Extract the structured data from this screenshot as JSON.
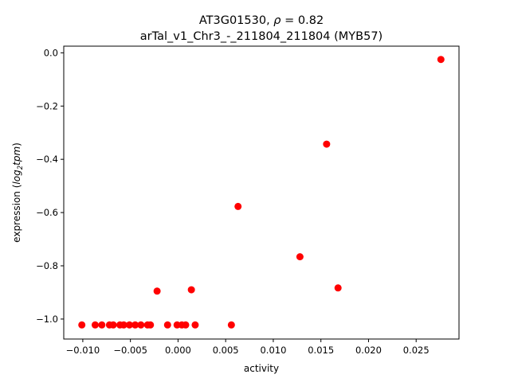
{
  "chart_data": {
    "type": "scatter",
    "title_line1_prefix": "AT3G01530, ",
    "title_line1_rho": "ρ",
    "title_line1_value": " = 0.82",
    "title_line2": "arTal_v1_Chr3_-_211804_211804 (MYB57)",
    "xlabel": "activity",
    "ylabel_prefix": "expression (",
    "ylabel_log": "log",
    "ylabel_sub": "2",
    "ylabel_tpm": "tpm",
    "ylabel_suffix": ")",
    "xlim": [
      -0.012,
      0.0295
    ],
    "ylim": [
      -1.075,
      0.025
    ],
    "xticks": [
      -0.01,
      -0.005,
      0.0,
      0.005,
      0.01,
      0.015,
      0.02,
      0.025
    ],
    "xtick_labels": [
      "−0.010",
      "−0.005",
      "0.000",
      "0.005",
      "0.010",
      "0.015",
      "0.020",
      "0.025"
    ],
    "yticks": [
      -1.0,
      -0.8,
      -0.6,
      -0.4,
      -0.2,
      0.0
    ],
    "ytick_labels": [
      "−1.0",
      "−0.8",
      "−0.6",
      "−0.4",
      "−0.2",
      "0.0"
    ],
    "grid": false,
    "marker_color": "#ff0000",
    "series": [
      {
        "points": [
          [
            -0.0101,
            -1.022
          ],
          [
            -0.0087,
            -1.022
          ],
          [
            -0.008,
            -1.022
          ],
          [
            -0.0072,
            -1.022
          ],
          [
            -0.0068,
            -1.022
          ],
          [
            -0.0061,
            -1.022
          ],
          [
            -0.0057,
            -1.022
          ],
          [
            -0.0051,
            -1.022
          ],
          [
            -0.0045,
            -1.022
          ],
          [
            -0.0039,
            -1.022
          ],
          [
            -0.0032,
            -1.022
          ],
          [
            -0.0029,
            -1.022
          ],
          [
            -0.0011,
            -1.022
          ],
          [
            -0.0001,
            -1.022
          ],
          [
            0.0004,
            -1.022
          ],
          [
            0.0008,
            -1.022
          ],
          [
            0.0018,
            -1.022
          ],
          [
            0.0056,
            -1.022
          ],
          [
            -0.0022,
            -0.895
          ],
          [
            0.0014,
            -0.89
          ],
          [
            0.0063,
            -0.577
          ],
          [
            0.0128,
            -0.766
          ],
          [
            0.0156,
            -0.343
          ],
          [
            0.0168,
            -0.883
          ],
          [
            0.0276,
            -0.025
          ]
        ]
      }
    ]
  }
}
